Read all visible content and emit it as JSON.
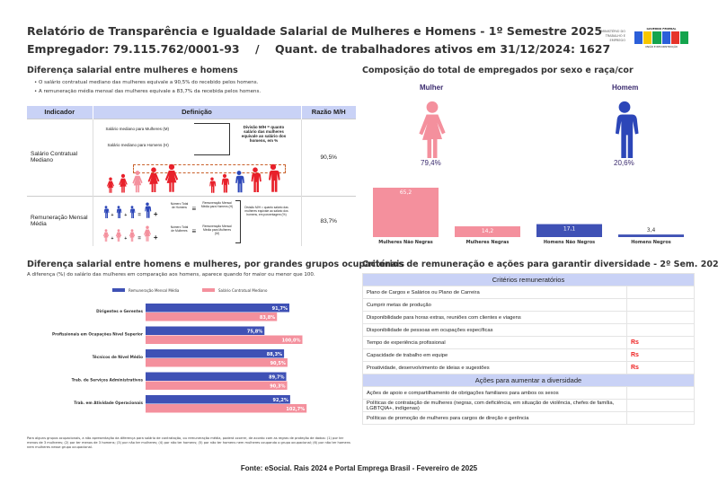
{
  "header": {
    "title": "Relatório de Transparência e Igualdade Salarial de Mulheres e Homens - 1º Semestre 2025",
    "subtitle": "Empregador: 79.115.762/0001-93    /    Quant. de trabalhadores ativos em 31/12/2024: 1627",
    "ministry_logo": "MINISTÉRIO DO TRABALHO E EMPREGO",
    "gov_logo": "GOVERNO FEDERAL BRASIL UNIÃO E RECONSTRUÇÃO"
  },
  "salary_diff": {
    "title": "Diferença salarial entre mulheres e homens",
    "bullets": [
      "O salário contratual mediano das mulheres equivale a 90,5% do recebido pelos homens.",
      "A remuneração média mensal das mulheres equivale a 83,7% da recebida pelos homens."
    ],
    "table": {
      "headers": [
        "Indicador",
        "Definição",
        "Razão M/H"
      ],
      "rows": [
        {
          "indicator": "Salário Contratual Mediano",
          "def_a": "Salário mediano para Mulheres (M)",
          "def_b": "Salário mediano para Homens (H)",
          "def_note": "Divisão M/H = quanto salário das mulheres equivale ao salário dos homens, em %",
          "ratio": "90,5%"
        },
        {
          "indicator": "Remuneração Mensal Média",
          "def_a": "Número Total de Homens",
          "def_a2": "Remuneração Mensal Média para Homens (H)",
          "def_b": "Número Total de Mulheres",
          "def_b2": "Remuneração Mensal Média para Mulheres (M)",
          "def_note": "Divisão M/H = quanto salário das mulheres equivale ao salário dos homens, em porcentagem (%)",
          "ratio": "83,7%"
        }
      ]
    }
  },
  "occupational": {
    "title": "Diferença salarial entre homens e mulheres, por grandes grupos ocupacionais",
    "subtitle": "A diferença (%) do salário das mulheres em comparação aos homens, aparece quando for maior ou menor que 100.",
    "footnote": "Para alguns grupos ocupacionais, a não apresentação da diferença para salário de contratação, ou remuneração média, poderá ocorrer, de acordo com as regras de proteção de dados: (1) por ter menos de 3 mulheres; (2) por ter menos de 3 homens; (3) por não ter mulheres; (4) por não ter homens; (5) por não ter homens nem mulheres ocupando o grupo ocupacional; (6) por não ter homens nem mulheres nesse grupo ocupacional."
  },
  "composition": {
    "title": "Composição do total de empregados por sexo e raça/cor",
    "female_label": "Mulher",
    "female_pct": "79,4%",
    "male_label": "Homem",
    "male_pct": "20,6%"
  },
  "criteria": {
    "title": "Critérios de remuneração e ações para garantir diversidade - 2º Sem. 2024",
    "section1": "Critérios remuneratórios",
    "items1": [
      {
        "label": "Plano de Cargos e Salários ou Plano de Carreira",
        "mark": ""
      },
      {
        "label": "Cumprir metas de produção",
        "mark": ""
      },
      {
        "label": "Disponibilidade para horas extras, reuniões com clientes e viagens",
        "mark": ""
      },
      {
        "label": "Disponibilidade de pessoas em ocupações específicas",
        "mark": ""
      },
      {
        "label": "Tempo de experiência profissional",
        "mark": "Rs"
      },
      {
        "label": "Capacidade de trabalho em equipe",
        "mark": "Rs"
      },
      {
        "label": "Proatividade, desenvolvimento de ideias e sugestões",
        "mark": "Rs"
      }
    ],
    "section2": "Ações para aumentar a diversidade",
    "items2": [
      {
        "label": "Ações de apoio e compartilhamento de obrigações familiares para ambos os sexos",
        "mark": ""
      },
      {
        "label": "Políticas de contratação de mulheres (negras, com deficiência, em situação de violência, chefes de família, LGBTQIA+, indígenas)",
        "mark": ""
      },
      {
        "label": "Políticas de promoção de mulheres para cargos de direção e gerência",
        "mark": ""
      }
    ]
  },
  "footer": {
    "source": "Fonte: eSocial. Rais 2024 e Portal Emprega Brasil - Fevereiro de 2025"
  },
  "colors": {
    "blue": "#3f51b5",
    "pink": "#f4909d",
    "header_bg": "#c9d2f6",
    "red": "#e8202a"
  },
  "chart_data": [
    {
      "type": "bar",
      "orientation": "horizontal",
      "title": "Diferença salarial entre homens e mulheres, por grandes grupos ocupacionais",
      "categories": [
        "Dirigentes e Gerentes",
        "Profissionais em Ocupações Nível Superior",
        "Técnicos de Nível Médio",
        "Trab. de Serviços Administrativos",
        "Trab. em Atividade Operacionais"
      ],
      "series": [
        {
          "name": "Remuneração Mensal Média",
          "color": "#3f51b5",
          "values": [
            91.7,
            75.8,
            88.3,
            89.7,
            92.2
          ],
          "labels": [
            "91,7%",
            "75,8%",
            "88,3%",
            "89,7%",
            "92,2%"
          ]
        },
        {
          "name": "Salário Contratual Mediano",
          "color": "#f4909d",
          "values": [
            83.8,
            100.0,
            90.5,
            90.3,
            102.7
          ],
          "labels": [
            "83,8%",
            "100,0%",
            "90,5%",
            "90,3%",
            "102,7%"
          ]
        }
      ],
      "legend": "top",
      "xlim": [
        0,
        110
      ]
    },
    {
      "type": "bar",
      "title": "Composição do total de empregados por sexo e raça/cor",
      "categories": [
        "Mulheres Não Negras",
        "Mulheres Negras",
        "Homens Não Negros",
        "Homens Negros"
      ],
      "values": [
        65.2,
        14.2,
        17.1,
        3.4
      ],
      "labels": [
        "65,2",
        "14,2",
        "17,1",
        "3,4"
      ],
      "colors": [
        "#f4909d",
        "#f4909d",
        "#3f51b5",
        "#3f51b5"
      ],
      "ylim": [
        0,
        65.2
      ]
    }
  ]
}
